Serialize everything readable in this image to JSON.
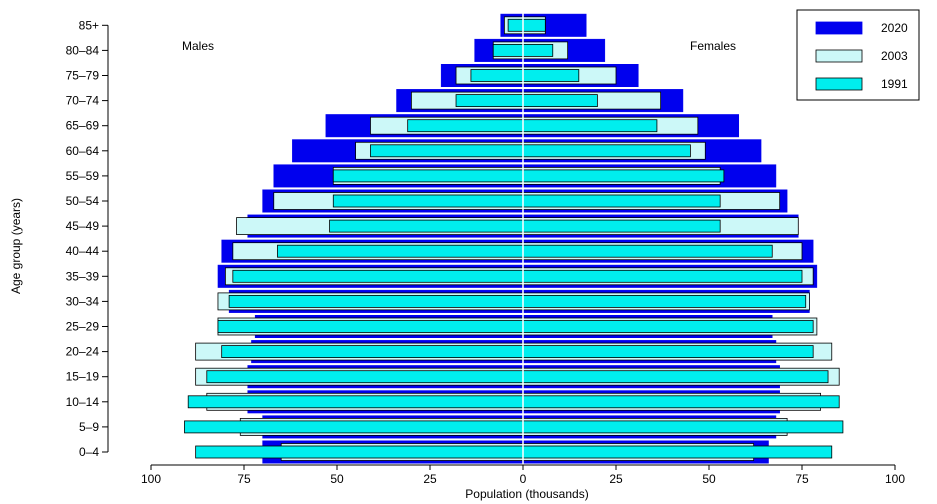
{
  "chart_data": {
    "type": "bar",
    "subtype": "population-pyramid",
    "xlabel": "Population (thousands)",
    "ylabel": "Age group (years)",
    "xlim": [
      -100,
      100
    ],
    "xticks": [
      -100,
      -75,
      -50,
      -25,
      0,
      25,
      50,
      75,
      100
    ],
    "xtick_labels": [
      "100",
      "75",
      "50",
      "25",
      "0",
      "25",
      "50",
      "75",
      "100"
    ],
    "panel_labels": {
      "left": "Males",
      "right": "Females"
    },
    "categories": [
      "0–4",
      "5–9",
      "10–14",
      "15–19",
      "20–24",
      "25–29",
      "30–34",
      "35–39",
      "40–44",
      "45–49",
      "50–54",
      "55–59",
      "60–64",
      "65–69",
      "70–74",
      "75–79",
      "80–84",
      "85+"
    ],
    "legend_position": "top-right",
    "series": [
      {
        "name": "2020",
        "color": "#0000ee",
        "males": [
          70,
          70,
          74,
          74,
          73,
          72,
          79,
          82,
          81,
          74,
          70,
          67,
          62,
          53,
          34,
          22,
          13,
          6
        ],
        "females": [
          66,
          68,
          69,
          69,
          68,
          67,
          77,
          79,
          78,
          74,
          71,
          68,
          64,
          58,
          43,
          31,
          22,
          17
        ]
      },
      {
        "name": "2003",
        "color": "#ccf8f8",
        "males": [
          65,
          76,
          85,
          88,
          88,
          82,
          82,
          80,
          78,
          77,
          67,
          51,
          45,
          41,
          30,
          18,
          8,
          5
        ],
        "females": [
          62,
          71,
          80,
          85,
          83,
          79,
          77,
          78,
          75,
          74,
          69,
          53,
          49,
          47,
          37,
          25,
          12,
          6
        ]
      },
      {
        "name": "1991",
        "color": "#00eeee",
        "males": [
          88,
          91,
          90,
          85,
          81,
          82,
          79,
          78,
          66,
          52,
          51,
          51,
          41,
          31,
          18,
          14,
          8,
          4
        ],
        "females": [
          83,
          86,
          85,
          82,
          78,
          78,
          76,
          75,
          67,
          53,
          53,
          54,
          45,
          36,
          20,
          15,
          8,
          6
        ]
      }
    ]
  }
}
